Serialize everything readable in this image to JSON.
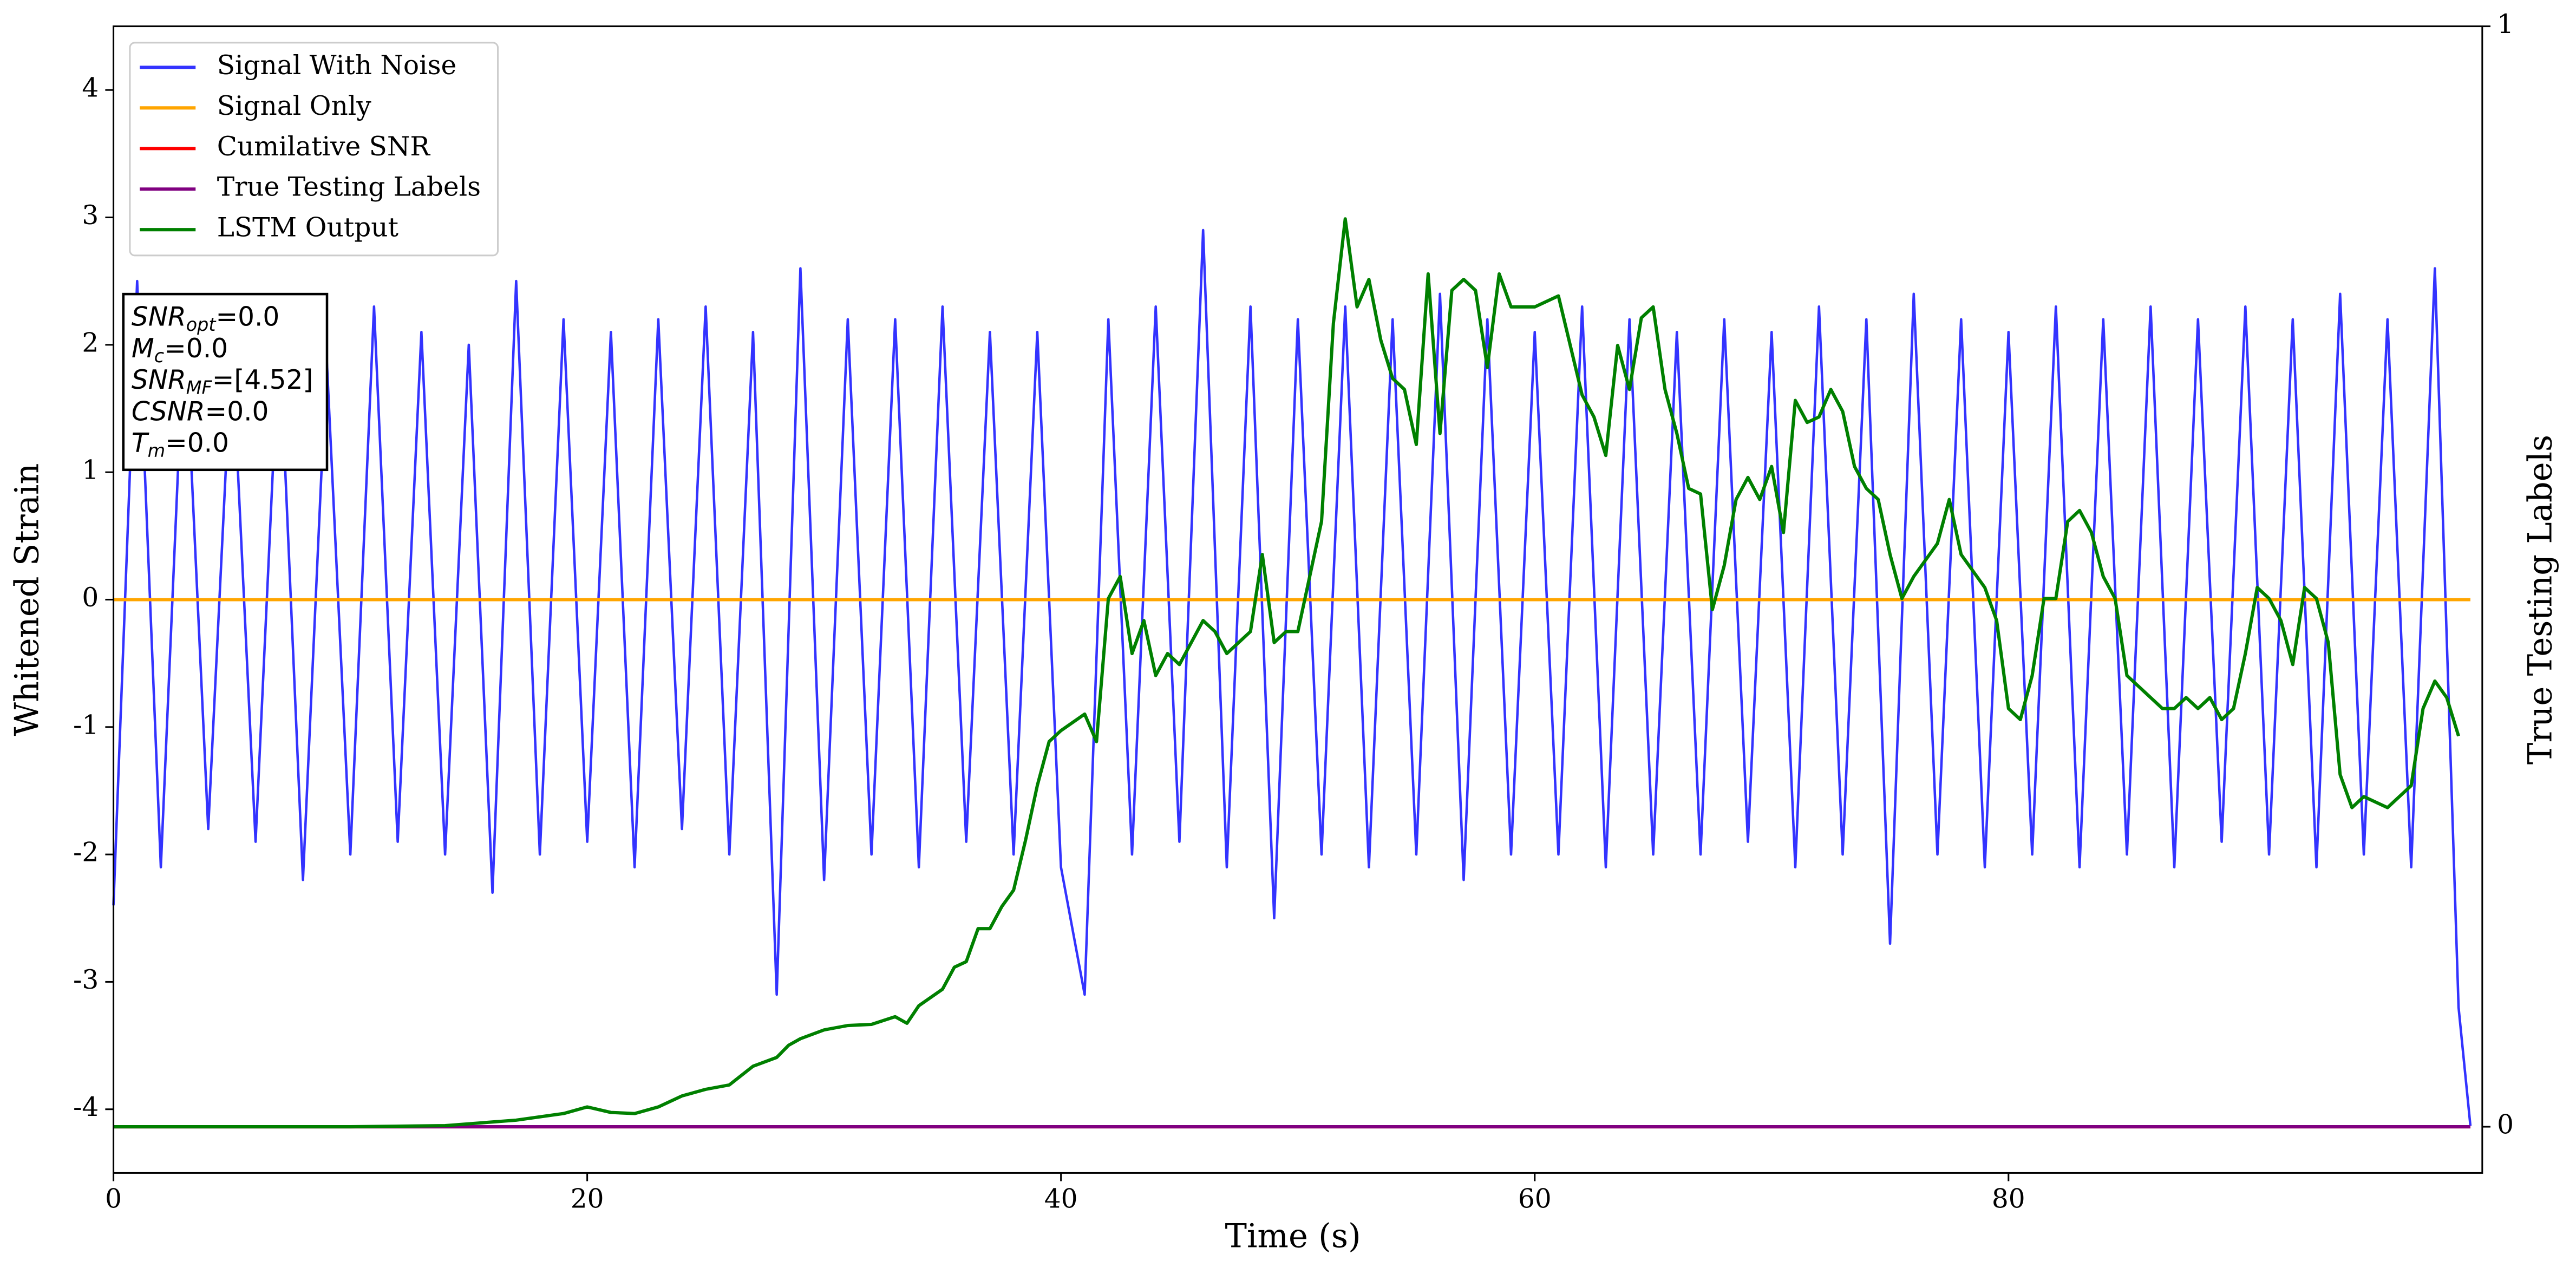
{
  "chart_data": {
    "type": "line",
    "xlabel": "Time (s)",
    "ylabel": "Whitened Strain",
    "y2label": "True Testing Labels",
    "xlim": [
      0,
      100
    ],
    "ylim": [
      -4.5,
      4.5
    ],
    "y2lim": [
      -0.042,
      1
    ],
    "xticks": [
      0,
      20,
      40,
      60,
      80
    ],
    "yticks": [
      -4,
      -3,
      -2,
      -1,
      0,
      1,
      2,
      3,
      4
    ],
    "y2ticks": [
      0,
      1
    ],
    "legend": "upper left",
    "series": [
      {
        "name": "Signal With Noise",
        "color": "#3333ff",
        "x": [
          0,
          1,
          2,
          3,
          4,
          5,
          6,
          7,
          8,
          9,
          10,
          11,
          12,
          13,
          14,
          15,
          16,
          17,
          18,
          19,
          20,
          21,
          22,
          23,
          24,
          25,
          26,
          27,
          28,
          29,
          30,
          31,
          32,
          33,
          34,
          35,
          36,
          37,
          38,
          39,
          40,
          41,
          42,
          43,
          44,
          45,
          46,
          47,
          48,
          49,
          50,
          51,
          52,
          53,
          54,
          55,
          56,
          57,
          58,
          59,
          60,
          61,
          62,
          63,
          64,
          65,
          66,
          67,
          68,
          69,
          70,
          71,
          72,
          73,
          74,
          75,
          76,
          77,
          78,
          79,
          80,
          81,
          82,
          83,
          84,
          85,
          86,
          87,
          88,
          89,
          90,
          91,
          92,
          93,
          94,
          95,
          96,
          97,
          98,
          99,
          99.5
        ],
        "values": [
          -2.4,
          2.5,
          -2.1,
          2.2,
          -1.8,
          2.0,
          -1.9,
          2.1,
          -2.2,
          1.9,
          -2.0,
          2.3,
          -1.9,
          2.1,
          -2.0,
          2.0,
          -2.3,
          2.5,
          -2.0,
          2.2,
          -1.9,
          2.1,
          -2.1,
          2.2,
          -1.8,
          2.3,
          -2.0,
          2.1,
          -3.1,
          2.6,
          -2.2,
          2.2,
          -2.0,
          2.2,
          -2.1,
          2.3,
          -1.9,
          2.1,
          -2.0,
          2.1,
          -2.1,
          -3.1,
          2.2,
          -2.0,
          2.3,
          -1.9,
          2.9,
          -2.1,
          2.3,
          -2.5,
          2.2,
          -2.0,
          2.3,
          -2.1,
          2.2,
          -2.0,
          2.4,
          -2.2,
          2.2,
          -2.0,
          2.1,
          -2.0,
          2.3,
          -2.1,
          2.2,
          -2.0,
          2.1,
          -2.0,
          2.2,
          -1.9,
          2.1,
          -2.1,
          2.3,
          -2.0,
          2.2,
          -2.7,
          2.4,
          -2.0,
          2.2,
          -2.1,
          2.1,
          -2.0,
          2.3,
          -2.1,
          2.2,
          -2.0,
          2.3,
          -2.1,
          2.2,
          -1.9,
          2.3,
          -2.0,
          2.2,
          -2.1,
          2.4,
          -2.0,
          2.2,
          -2.1,
          2.6,
          -3.2,
          -4.13
        ]
      },
      {
        "name": "Signal Only",
        "color": "#ffa500",
        "x": [
          0,
          99.5
        ],
        "values": [
          0,
          0
        ]
      },
      {
        "name": "Cumilative SNR",
        "color": "#ff0000",
        "axis": "y2",
        "x": [
          0,
          99.5
        ],
        "values": [
          0,
          0
        ]
      },
      {
        "name": "True Testing Labels",
        "color": "#800080",
        "axis": "y2",
        "x": [
          0,
          99.5
        ],
        "values": [
          0,
          0
        ]
      },
      {
        "name": "LSTM Output",
        "color": "#008000",
        "axis": "y2",
        "x": [
          0,
          10,
          14,
          17,
          19,
          20,
          21,
          22,
          23,
          24,
          25,
          26,
          27,
          28,
          28.5,
          29,
          30,
          31,
          32,
          33,
          33.5,
          34,
          35,
          35.5,
          36,
          36.5,
          37,
          37.5,
          38,
          38.5,
          39,
          39.5,
          40,
          41,
          41.5,
          42,
          42.5,
          43,
          43.5,
          44,
          44.5,
          45,
          46,
          46.5,
          47,
          48,
          48.5,
          49,
          49.5,
          50,
          51,
          51.5,
          52,
          52.5,
          53,
          53.5,
          54,
          54.5,
          55,
          55.5,
          56,
          56.5,
          57,
          57.5,
          58,
          58.5,
          59,
          60,
          61,
          62,
          62.5,
          63,
          63.5,
          64,
          64.5,
          65,
          65.5,
          66,
          66.5,
          67,
          67.5,
          68,
          68.5,
          69,
          69.5,
          70,
          70.5,
          71,
          71.5,
          72,
          72.5,
          73,
          73.5,
          74,
          74.5,
          75,
          75.5,
          76,
          77,
          77.5,
          78,
          79,
          79.5,
          80,
          80.5,
          81,
          81.5,
          82,
          82.5,
          83,
          83.5,
          84,
          84.5,
          85,
          86,
          86.5,
          87,
          87.5,
          88,
          88.5,
          89,
          89.5,
          90,
          90.5,
          91,
          91.5,
          92,
          92.5,
          93,
          93.5,
          94,
          94.5,
          95,
          96,
          97,
          97.5,
          98,
          98.5,
          99
        ],
        "values": [
          0,
          0,
          0.001,
          0.006,
          0.012,
          0.018,
          0.013,
          0.012,
          0.018,
          0.028,
          0.034,
          0.038,
          0.055,
          0.063,
          0.074,
          0.08,
          0.088,
          0.092,
          0.093,
          0.1,
          0.094,
          0.11,
          0.125,
          0.145,
          0.15,
          0.18,
          0.18,
          0.2,
          0.215,
          0.26,
          0.31,
          0.35,
          0.36,
          0.375,
          0.35,
          0.48,
          0.5,
          0.43,
          0.46,
          0.41,
          0.43,
          0.42,
          0.46,
          0.45,
          0.43,
          0.45,
          0.52,
          0.44,
          0.45,
          0.45,
          0.55,
          0.73,
          0.825,
          0.745,
          0.77,
          0.715,
          0.68,
          0.67,
          0.62,
          0.775,
          0.63,
          0.76,
          0.77,
          0.76,
          0.69,
          0.775,
          0.745,
          0.745,
          0.755,
          0.665,
          0.645,
          0.61,
          0.71,
          0.67,
          0.735,
          0.745,
          0.67,
          0.63,
          0.58,
          0.575,
          0.47,
          0.51,
          0.57,
          0.59,
          0.57,
          0.6,
          0.54,
          0.66,
          0.64,
          0.645,
          0.67,
          0.65,
          0.6,
          0.58,
          0.57,
          0.52,
          0.48,
          0.5,
          0.53,
          0.57,
          0.52,
          0.49,
          0.46,
          0.38,
          0.37,
          0.41,
          0.48,
          0.48,
          0.55,
          0.56,
          0.54,
          0.5,
          0.48,
          0.41,
          0.39,
          0.38,
          0.38,
          0.39,
          0.38,
          0.39,
          0.37,
          0.38,
          0.43,
          0.49,
          0.48,
          0.46,
          0.42,
          0.49,
          0.48,
          0.44,
          0.32,
          0.29,
          0.3,
          0.29,
          0.31,
          0.38,
          0.405,
          0.39,
          0.355
        ]
      }
    ],
    "annotation": [
      {
        "base": "SNR",
        "sub": "opt",
        "rest": "=0.0"
      },
      {
        "base": "M",
        "sub": "c",
        "rest": "=0.0"
      },
      {
        "base": "SNR",
        "sub": "MF",
        "rest": "=[4.52]"
      },
      {
        "base": "CSNR",
        "rest": "=0.0"
      },
      {
        "base": "T",
        "sub": "m",
        "rest": "=0.0"
      }
    ]
  }
}
